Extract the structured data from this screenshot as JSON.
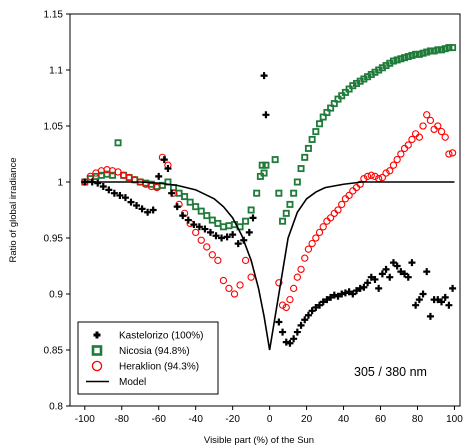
{
  "chart_data": {
    "type": "scatter",
    "xlabel": "Visible part (%) of the Sun",
    "ylabel": "Ratio of global irradiance",
    "xlim": [
      -108,
      103
    ],
    "ylim": [
      0.8,
      1.15
    ],
    "xticks": [
      -100,
      -80,
      -60,
      -40,
      -20,
      0,
      20,
      40,
      60,
      80,
      100
    ],
    "yticks": [
      0.8,
      0.85,
      0.9,
      0.95,
      1,
      1.05,
      1.1,
      1.15
    ],
    "ytick_labels": [
      "0.8",
      "0.85",
      "0.9",
      "0.95",
      "1",
      "1.05",
      "1.1",
      "1.15"
    ],
    "annotation": "305 / 380 nm",
    "legend_position": "bottom-left",
    "series": [
      {
        "name": "Kastelorizo (100%)",
        "marker": "plus",
        "color": "#000000",
        "x": [
          -100,
          -96,
          -93,
          -90,
          -87,
          -84,
          -81,
          -78,
          -75,
          -72,
          -69,
          -66,
          -63,
          -60,
          -57,
          -55,
          -53,
          -50,
          -47,
          -44,
          -41,
          -38,
          -35,
          -32,
          -29,
          -26,
          -23,
          -20,
          -17,
          -14,
          -11,
          -9,
          -3,
          -2,
          5,
          7,
          9,
          11,
          13,
          15,
          17,
          19,
          21,
          23,
          25,
          27,
          29,
          31,
          33,
          35,
          37,
          39,
          41,
          43,
          45,
          47,
          49,
          51,
          53,
          55,
          57,
          59,
          61,
          63,
          65,
          67,
          69,
          71,
          73,
          75,
          77,
          79,
          81,
          83,
          85,
          87,
          89,
          91,
          93,
          95,
          97,
          99
        ],
        "y": [
          1.0,
          1.0,
          0.999,
          0.996,
          0.993,
          0.99,
          0.988,
          0.986,
          0.982,
          0.979,
          0.976,
          0.973,
          0.975,
          1.005,
          1.02,
          1.012,
          0.99,
          0.978,
          0.97,
          0.966,
          0.962,
          0.96,
          0.958,
          0.955,
          0.952,
          0.95,
          0.951,
          0.953,
          0.945,
          0.948,
          0.955,
          0.968,
          1.095,
          1.06,
          0.875,
          0.866,
          0.857,
          0.856,
          0.86,
          0.866,
          0.872,
          0.877,
          0.881,
          0.885,
          0.888,
          0.89,
          0.893,
          0.895,
          0.897,
          0.899,
          0.898,
          0.9,
          0.901,
          0.902,
          0.9,
          0.903,
          0.905,
          0.906,
          0.91,
          0.915,
          0.913,
          0.905,
          0.918,
          0.922,
          0.915,
          0.928,
          0.925,
          0.92,
          0.918,
          0.915,
          0.928,
          0.89,
          0.895,
          0.9,
          0.92,
          0.88,
          0.895,
          0.895,
          0.893,
          0.897,
          0.89,
          0.905
        ]
      },
      {
        "name": "Nicosia (94.8%)",
        "marker": "square",
        "color": "#1e7b3a",
        "x": [
          -100,
          -97,
          -94,
          -91,
          -88,
          -85,
          -82,
          -79,
          -76,
          -73,
          -70,
          -67,
          -64,
          -61,
          -58,
          -55,
          -52,
          -49,
          -46,
          -43,
          -40,
          -37,
          -34,
          -31,
          -28,
          -25,
          -22,
          -19,
          -16,
          -13,
          -10,
          -7,
          -5,
          -4,
          -3,
          -2,
          3,
          5,
          7,
          9,
          11,
          13,
          15,
          17,
          19,
          21,
          23,
          25,
          27,
          29,
          31,
          33,
          35,
          37,
          39,
          41,
          43,
          45,
          47,
          49,
          51,
          53,
          55,
          57,
          59,
          61,
          63,
          65,
          67,
          69,
          71,
          73,
          75,
          77,
          79,
          81,
          83,
          85,
          87,
          89,
          91,
          93,
          95,
          97,
          99
        ],
        "y": [
          1.0,
          1.003,
          1.005,
          1.006,
          1.007,
          1.006,
          1.035,
          1.006,
          1.004,
          1.002,
          1.0,
          0.999,
          0.998,
          0.996,
          0.997,
          1.0,
          0.995,
          0.99,
          0.987,
          0.982,
          0.978,
          0.974,
          0.97,
          0.966,
          0.963,
          0.96,
          0.961,
          0.962,
          0.96,
          0.965,
          0.975,
          0.99,
          1.005,
          1.015,
          1.008,
          1.015,
          1.02,
          0.99,
          0.965,
          0.972,
          0.98,
          0.99,
          1.0,
          1.012,
          1.022,
          1.03,
          1.038,
          1.045,
          1.052,
          1.058,
          1.062,
          1.066,
          1.07,
          1.074,
          1.077,
          1.08,
          1.083,
          1.086,
          1.088,
          1.09,
          1.092,
          1.094,
          1.096,
          1.098,
          1.1,
          1.102,
          1.104,
          1.106,
          1.108,
          1.109,
          1.11,
          1.111,
          1.112,
          1.113,
          1.114,
          1.114,
          1.115,
          1.116,
          1.117,
          1.117,
          1.118,
          1.118,
          1.119,
          1.12,
          1.12
        ]
      },
      {
        "name": "Heraklion (94.3%)",
        "marker": "circle",
        "color": "#ff0000",
        "x": [
          -100,
          -97,
          -94,
          -91,
          -88,
          -85,
          -82,
          -79,
          -76,
          -73,
          -70,
          -67,
          -64,
          -61,
          -58,
          -55,
          -52,
          -49,
          -46,
          -43,
          -40,
          -37,
          -34,
          -31,
          -28,
          -25,
          -22,
          -19,
          -16,
          -13,
          -10,
          5,
          7,
          9,
          11,
          13,
          15,
          17,
          19,
          21,
          23,
          25,
          27,
          29,
          31,
          33,
          35,
          37,
          39,
          41,
          43,
          45,
          47,
          49,
          51,
          53,
          55,
          57,
          59,
          61,
          63,
          65,
          67,
          69,
          71,
          73,
          75,
          77,
          79,
          81,
          83,
          85,
          87,
          89,
          91,
          93,
          95,
          97,
          99
        ],
        "y": [
          1.0,
          1.005,
          1.008,
          1.01,
          1.011,
          1.01,
          1.009,
          1.006,
          1.004,
          1.002,
          1.0,
          0.998,
          0.996,
          0.995,
          1.022,
          1.015,
          0.99,
          0.98,
          0.972,
          0.963,
          0.955,
          0.948,
          0.942,
          0.935,
          0.93,
          0.912,
          0.905,
          0.9,
          0.908,
          0.93,
          0.915,
          0.91,
          0.89,
          0.888,
          0.895,
          0.905,
          0.915,
          0.922,
          0.932,
          0.94,
          0.945,
          0.95,
          0.955,
          0.96,
          0.965,
          0.968,
          0.972,
          0.975,
          0.98,
          0.985,
          0.988,
          0.992,
          0.995,
          0.998,
          1.003,
          1.005,
          1.006,
          1.005,
          1.003,
          1.004,
          1.008,
          1.01,
          1.015,
          1.02,
          1.025,
          1.03,
          1.033,
          1.038,
          1.043,
          1.04,
          1.05,
          1.06,
          1.055,
          1.047,
          1.05,
          1.045,
          1.04,
          1.025,
          1.026
        ]
      },
      {
        "name": "Model",
        "type": "line",
        "color": "#000000",
        "x": [
          -100,
          -90,
          -80,
          -70,
          -60,
          -50,
          -40,
          -30,
          -25,
          -20,
          -15,
          -10,
          -6,
          -3,
          -1,
          0,
          1,
          3,
          6,
          10,
          15,
          20,
          25,
          30,
          40,
          50,
          60,
          70,
          80,
          90,
          100
        ],
        "y": [
          1.0,
          1.0,
          1.0,
          1.0,
          0.999,
          0.997,
          0.993,
          0.985,
          0.978,
          0.968,
          0.952,
          0.93,
          0.905,
          0.88,
          0.86,
          0.85,
          0.86,
          0.88,
          0.91,
          0.95,
          0.973,
          0.985,
          0.991,
          0.995,
          0.998,
          1.0,
          1.0,
          1.0,
          1.0,
          1.0,
          1.0
        ]
      }
    ]
  }
}
